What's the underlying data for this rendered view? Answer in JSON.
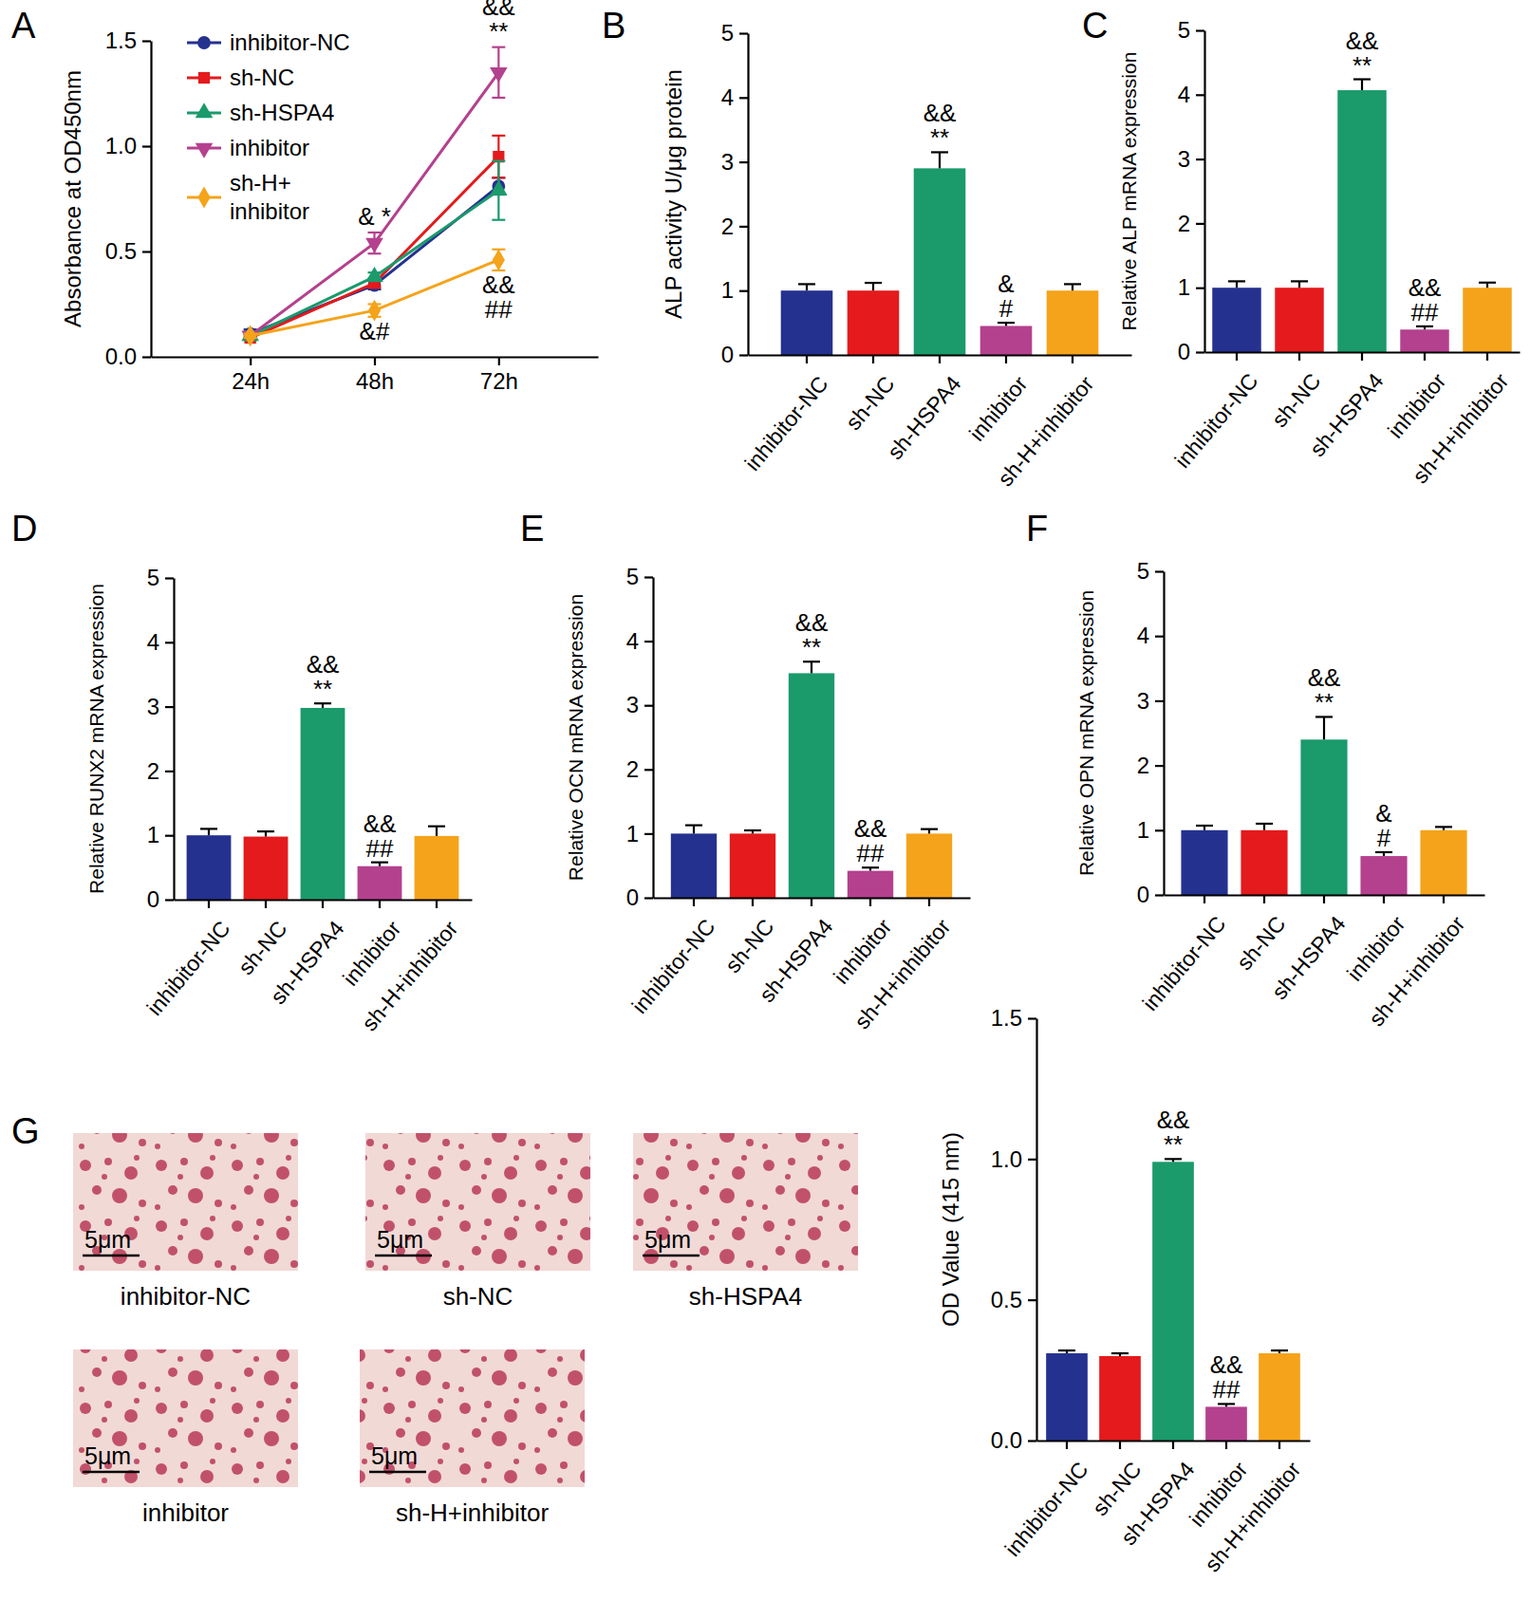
{
  "chart_data": [
    {
      "panel": "A",
      "type": "line",
      "y_label": "Absorbance at OD450nm",
      "categories": [
        "24h",
        "48h",
        "72h"
      ],
      "ylim": [
        0,
        1.5
      ],
      "yticks": [
        {
          "value": 0,
          "label": "0.0"
        },
        {
          "value": 0.5,
          "label": "0.5"
        },
        {
          "value": 1,
          "label": "1.0"
        },
        {
          "value": 1.5,
          "label": "1.5"
        }
      ],
      "legend": "upper left",
      "series": [
        {
          "name": "inhibitor-NC",
          "color": "#25318f",
          "marker": "circle",
          "values": [
            0.11,
            0.34,
            0.81
          ],
          "errors": [
            0.02,
            0.02,
            0.04
          ]
        },
        {
          "name": "sh-NC",
          "color": "#e41a1c",
          "marker": "square",
          "values": [
            0.09,
            0.35,
            0.95
          ],
          "errors": [
            0.01,
            0.02,
            0.1
          ]
        },
        {
          "name": "sh-HSPA4",
          "color": "#1b9a6c",
          "marker": "triangle-up",
          "values": [
            0.1,
            0.38,
            0.79
          ],
          "errors": [
            0.02,
            0.02,
            0.14
          ]
        },
        {
          "name": "inhibitor",
          "color": "#b4418e",
          "marker": "triangle-down",
          "values": [
            0.1,
            0.54,
            1.35
          ],
          "errors": [
            0.01,
            0.05,
            0.12
          ]
        },
        {
          "name": "sh-H+ inhibitor",
          "color": "#f5a31a",
          "marker": "diamond",
          "values": [
            0.1,
            0.22,
            0.46
          ],
          "errors": [
            0.01,
            0.03,
            0.05
          ]
        }
      ],
      "annotations": [
        {
          "series": 3,
          "index": 1,
          "lines": [
            "& *"
          ]
        },
        {
          "series": 4,
          "index": 1,
          "lines": [
            "&#"
          ]
        },
        {
          "series": 3,
          "index": 2,
          "lines": [
            "&&",
            "**"
          ]
        },
        {
          "series": 4,
          "index": 2,
          "lines": [
            "&&",
            "##"
          ]
        }
      ]
    },
    {
      "panel": "B",
      "type": "bar",
      "y_label": "ALP activity U/μg protein",
      "categories": [
        "inhibitor-NC",
        "sh-NC",
        "sh-HSPA4",
        "inhibitor",
        "sh-H+inhibitor"
      ],
      "values": [
        1.0,
        1.0,
        2.9,
        0.45,
        1.0
      ],
      "errors": [
        0.1,
        0.12,
        0.25,
        0.05,
        0.1
      ],
      "colors": [
        "#25318f",
        "#e41a1c",
        "#1b9a6c",
        "#b4418e",
        "#f5a31a"
      ],
      "ylim": [
        0,
        5
      ],
      "yticks": [
        0,
        1,
        2,
        3,
        4,
        5
      ],
      "annotations": [
        {
          "index": 2,
          "lines": [
            "&&",
            "**"
          ]
        },
        {
          "index": 3,
          "lines": [
            "&",
            "#"
          ]
        }
      ]
    },
    {
      "panel": "C",
      "type": "bar",
      "y_label": "Relative ALP mRNA expression",
      "categories": [
        "inhibitor-NC",
        "sh-NC",
        "sh-HSPA4",
        "inhibitor",
        "sh-H+inhibitor"
      ],
      "values": [
        1.0,
        1.0,
        4.07,
        0.35,
        1.0
      ],
      "errors": [
        0.1,
        0.1,
        0.17,
        0.05,
        0.08
      ],
      "colors": [
        "#25318f",
        "#e41a1c",
        "#1b9a6c",
        "#b4418e",
        "#f5a31a"
      ],
      "ylim": [
        0,
        5
      ],
      "yticks": [
        0,
        1,
        2,
        3,
        4,
        5
      ],
      "annotations": [
        {
          "index": 2,
          "lines": [
            "&&",
            "**"
          ]
        },
        {
          "index": 3,
          "lines": [
            "&&",
            "##"
          ]
        }
      ]
    },
    {
      "panel": "D",
      "type": "bar",
      "y_label": "Relative RUNX2 mRNA expression",
      "categories": [
        "inhibitor-NC",
        "sh-NC",
        "sh-HSPA4",
        "inhibitor",
        "sh-H+inhibitor"
      ],
      "values": [
        1.0,
        0.98,
        2.98,
        0.52,
        0.99
      ],
      "errors": [
        0.1,
        0.08,
        0.07,
        0.06,
        0.15
      ],
      "colors": [
        "#25318f",
        "#e41a1c",
        "#1b9a6c",
        "#b4418e",
        "#f5a31a"
      ],
      "ylim": [
        0,
        5
      ],
      "yticks": [
        0,
        1,
        2,
        3,
        4,
        5
      ],
      "annotations": [
        {
          "index": 2,
          "lines": [
            "&&",
            "**"
          ]
        },
        {
          "index": 3,
          "lines": [
            "&&",
            "##"
          ]
        }
      ]
    },
    {
      "panel": "E",
      "type": "bar",
      "y_label": "Relative OCN mRNA expression",
      "categories": [
        "inhibitor-NC",
        "sh-NC",
        "sh-HSPA4",
        "inhibitor",
        "sh-H+inhibitor"
      ],
      "values": [
        1.0,
        1.0,
        3.5,
        0.42,
        1.0
      ],
      "errors": [
        0.13,
        0.05,
        0.18,
        0.05,
        0.07
      ],
      "colors": [
        "#25318f",
        "#e41a1c",
        "#1b9a6c",
        "#b4418e",
        "#f5a31a"
      ],
      "ylim": [
        0,
        5
      ],
      "yticks": [
        0,
        1,
        2,
        3,
        4,
        5
      ],
      "annotations": [
        {
          "index": 2,
          "lines": [
            "&&",
            "**"
          ]
        },
        {
          "index": 3,
          "lines": [
            "&&",
            "##"
          ]
        }
      ]
    },
    {
      "panel": "F",
      "type": "bar",
      "y_label": "Relative OPN mRNA expression",
      "categories": [
        "inhibitor-NC",
        "sh-NC",
        "sh-HSPA4",
        "inhibitor",
        "sh-H+inhibitor"
      ],
      "values": [
        1.0,
        1.0,
        2.4,
        0.6,
        1.0
      ],
      "errors": [
        0.07,
        0.1,
        0.35,
        0.06,
        0.05
      ],
      "colors": [
        "#25318f",
        "#e41a1c",
        "#1b9a6c",
        "#b4418e",
        "#f5a31a"
      ],
      "ylim": [
        0,
        5
      ],
      "yticks": [
        0,
        1,
        2,
        3,
        4,
        5
      ],
      "annotations": [
        {
          "index": 2,
          "lines": [
            "&&",
            "**"
          ]
        },
        {
          "index": 3,
          "lines": [
            "&",
            "#"
          ]
        }
      ]
    },
    {
      "panel": "G",
      "type": "bar",
      "y_label": "OD Value (415 nm)",
      "categories": [
        "inhibitor-NC",
        "sh-NC",
        "sh-HSPA4",
        "inhibitor",
        "sh-H+inhibitor"
      ],
      "values": [
        0.31,
        0.3,
        0.99,
        0.12,
        0.31
      ],
      "errors": [
        0.01,
        0.01,
        0.01,
        0.01,
        0.01
      ],
      "colors": [
        "#25318f",
        "#e41a1c",
        "#1b9a6c",
        "#b4418e",
        "#f5a31a"
      ],
      "ylim": [
        0,
        1.5
      ],
      "yticks": [
        {
          "value": 0,
          "label": "0.0"
        },
        {
          "value": 0.5,
          "label": "0.5"
        },
        {
          "value": 1,
          "label": "1.0"
        },
        {
          "value": 1.5,
          "label": "1.5"
        }
      ],
      "annotations": [
        {
          "index": 2,
          "lines": [
            "&&",
            "**"
          ]
        },
        {
          "index": 3,
          "lines": [
            "&&",
            "##"
          ]
        }
      ],
      "images": [
        {
          "caption": "inhibitor-NC",
          "scale_bar": "5μm"
        },
        {
          "caption": "sh-NC",
          "scale_bar": "5μm"
        },
        {
          "caption": "sh-HSPA4",
          "scale_bar": "5μm"
        },
        {
          "caption": "inhibitor",
          "scale_bar": "5μm"
        },
        {
          "caption": "sh-H+inhibitor",
          "scale_bar": "5μm"
        }
      ]
    }
  ]
}
